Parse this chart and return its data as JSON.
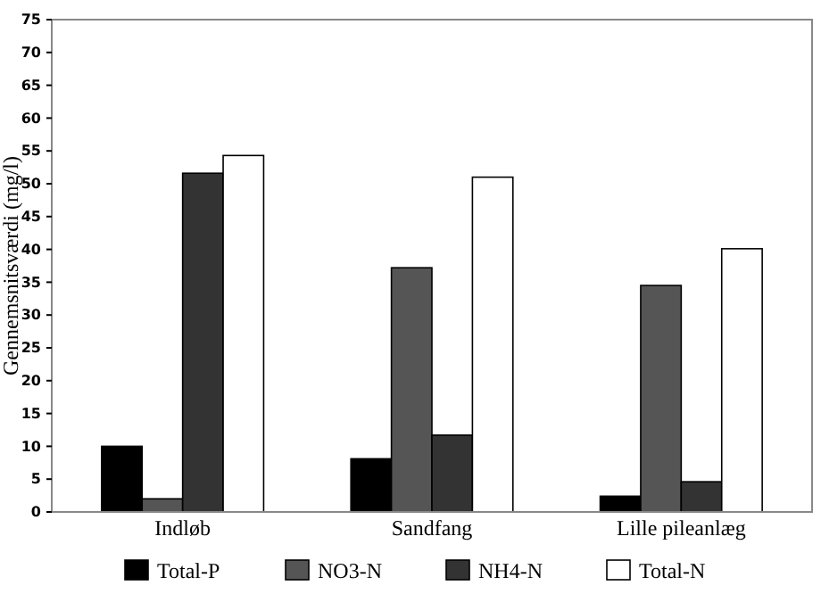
{
  "chart_data": {
    "type": "bar",
    "ylabel": "Gennemsnitsværdi (mg/l)",
    "categories": [
      "Indløb",
      "Sandfang",
      "Lille pileanlæg"
    ],
    "series": [
      {
        "name": "Total-P",
        "color": "#000000",
        "values": [
          10,
          8.1,
          2.4
        ]
      },
      {
        "name": "NO3-N",
        "color": "#555555",
        "values": [
          2,
          37.2,
          34.5
        ]
      },
      {
        "name": "NH4-N",
        "color": "#333333",
        "values": [
          51.6,
          11.7,
          4.6
        ]
      },
      {
        "name": "Total-N",
        "color": "#ffffff",
        "values": [
          54.3,
          51,
          40.1
        ]
      }
    ],
    "ylim": [
      0,
      75
    ],
    "yticks": [
      0,
      5,
      10,
      15,
      20,
      25,
      30,
      35,
      40,
      45,
      50,
      55,
      60,
      65,
      70,
      75
    ],
    "grid": false,
    "legend": "bottom"
  }
}
